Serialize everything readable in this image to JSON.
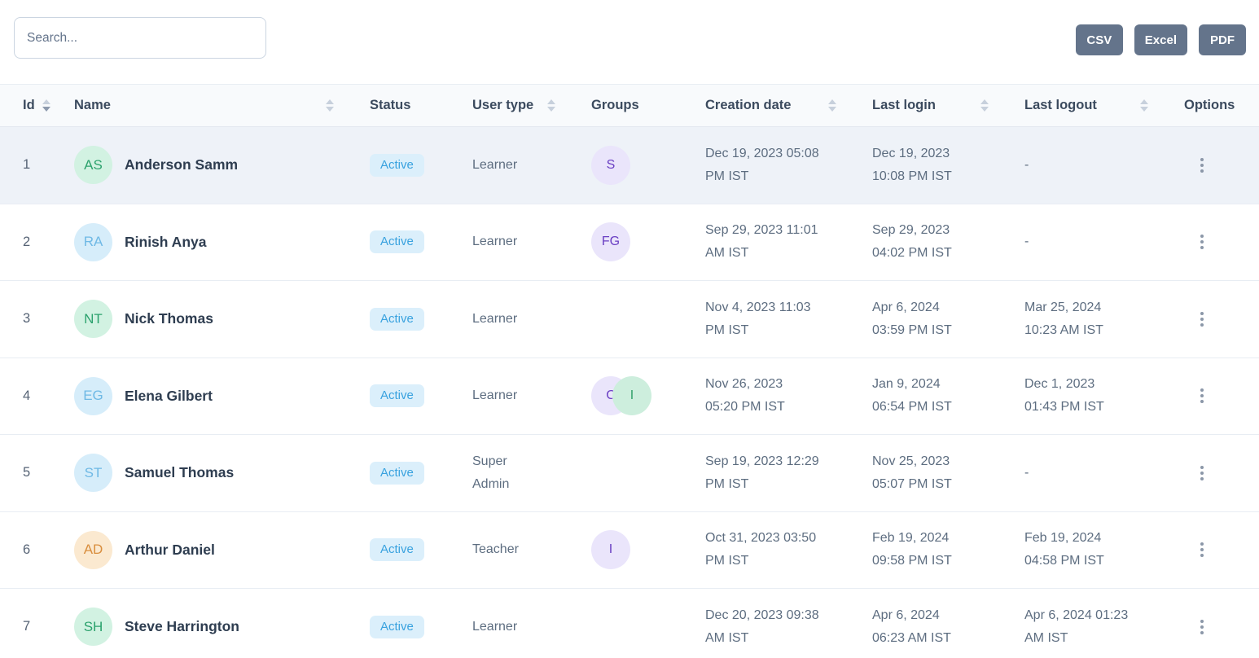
{
  "toolbar": {
    "search_placeholder": "Search...",
    "export_buttons": [
      {
        "label": "CSV"
      },
      {
        "label": "Excel"
      },
      {
        "label": "PDF"
      }
    ]
  },
  "table": {
    "columns": [
      {
        "label": "Id",
        "sortable": true,
        "sorted": "desc"
      },
      {
        "label": "Name",
        "sortable": true,
        "sorted": null
      },
      {
        "label": "Status",
        "sortable": false,
        "sorted": null
      },
      {
        "label": "User type",
        "sortable": true,
        "sorted": null
      },
      {
        "label": "Groups",
        "sortable": false,
        "sorted": null
      },
      {
        "label": "Creation date",
        "sortable": true,
        "sorted": null
      },
      {
        "label": "Last login",
        "sortable": true,
        "sorted": null
      },
      {
        "label": "Last logout",
        "sortable": true,
        "sorted": null
      },
      {
        "label": "Options",
        "sortable": false,
        "sorted": null
      }
    ],
    "rows": [
      {
        "id": 1,
        "initials": "AS",
        "avatar_color": "green",
        "name": "Anderson Samm",
        "status": "Active",
        "user_type": "Learner",
        "groups": [
          {
            "label": "S",
            "color": "purple"
          }
        ],
        "creation_date": "Dec 19, 2023 05:08\nPM IST",
        "last_login": "Dec 19, 2023\n10:08 PM IST",
        "last_logout": "-",
        "highlighted": true
      },
      {
        "id": 2,
        "initials": "RA",
        "avatar_color": "blue",
        "name": "Rinish Anya",
        "status": "Active",
        "user_type": "Learner",
        "groups": [
          {
            "label": "FG",
            "color": "purple"
          }
        ],
        "creation_date": "Sep 29, 2023 11:01\nAM IST",
        "last_login": "Sep 29, 2023\n04:02 PM IST",
        "last_logout": "-",
        "highlighted": false
      },
      {
        "id": 3,
        "initials": "NT",
        "avatar_color": "green",
        "name": "Nick Thomas",
        "status": "Active",
        "user_type": "Learner",
        "groups": [],
        "creation_date": "Nov 4, 2023 11:03\nPM IST",
        "last_login": "Apr 6, 2024\n03:59 PM IST",
        "last_logout": "Mar 25, 2024\n10:23 AM IST",
        "highlighted": false
      },
      {
        "id": 4,
        "initials": "EG",
        "avatar_color": "blue",
        "name": "Elena Gilbert",
        "status": "Active",
        "user_type": "Learner",
        "groups": [
          {
            "label": "C",
            "color": "purple"
          },
          {
            "label": "I",
            "color": "green"
          }
        ],
        "creation_date": "Nov 26, 2023\n05:20 PM IST",
        "last_login": "Jan 9, 2024\n06:54 PM IST",
        "last_logout": "Dec 1, 2023\n01:43 PM IST",
        "highlighted": false
      },
      {
        "id": 5,
        "initials": "ST",
        "avatar_color": "blue",
        "name": "Samuel Thomas",
        "status": "Active",
        "user_type": "Super\nAdmin",
        "groups": [],
        "creation_date": "Sep 19, 2023 12:29\nPM IST",
        "last_login": "Nov 25, 2023\n05:07 PM IST",
        "last_logout": "-",
        "highlighted": false
      },
      {
        "id": 6,
        "initials": "AD",
        "avatar_color": "orange",
        "name": "Arthur Daniel",
        "status": "Active",
        "user_type": "Teacher",
        "groups": [
          {
            "label": "I",
            "color": "purple"
          }
        ],
        "creation_date": "Oct 31, 2023 03:50\nPM IST",
        "last_login": "Feb 19, 2024\n09:58 PM IST",
        "last_logout": "Feb 19, 2024\n04:58 PM IST",
        "highlighted": false
      },
      {
        "id": 7,
        "initials": "SH",
        "avatar_color": "green",
        "name": "Steve Harrington",
        "status": "Active",
        "user_type": "Learner",
        "groups": [],
        "creation_date": "Dec 20, 2023 09:38\nAM IST",
        "last_login": "Apr 6, 2024\n06:23 AM IST",
        "last_logout": "Apr 6, 2024 01:23\nAM IST",
        "highlighted": false
      }
    ]
  },
  "colors": {
    "avatar": {
      "green": {
        "bg": "#d2f2e2",
        "fg": "#2ca26d"
      },
      "blue": {
        "bg": "#d6edfa",
        "fg": "#6fb9e5"
      },
      "orange": {
        "bg": "#fbe9d0",
        "fg": "#d98e3e"
      },
      "purple": {
        "bg": "#eae5fb",
        "fg": "#6a3fc3"
      }
    },
    "group": {
      "purple": {
        "bg": "#eae5fb",
        "fg": "#6a3fc3"
      },
      "green": {
        "bg": "#cdeedd",
        "fg": "#31a06a"
      }
    },
    "status_badge": {
      "bg": "#dbeffb",
      "fg": "#39a2df"
    },
    "export_button": {
      "bg": "#64748b",
      "fg": "#ffffff"
    },
    "highlight_row_bg": "#eef2f8"
  }
}
